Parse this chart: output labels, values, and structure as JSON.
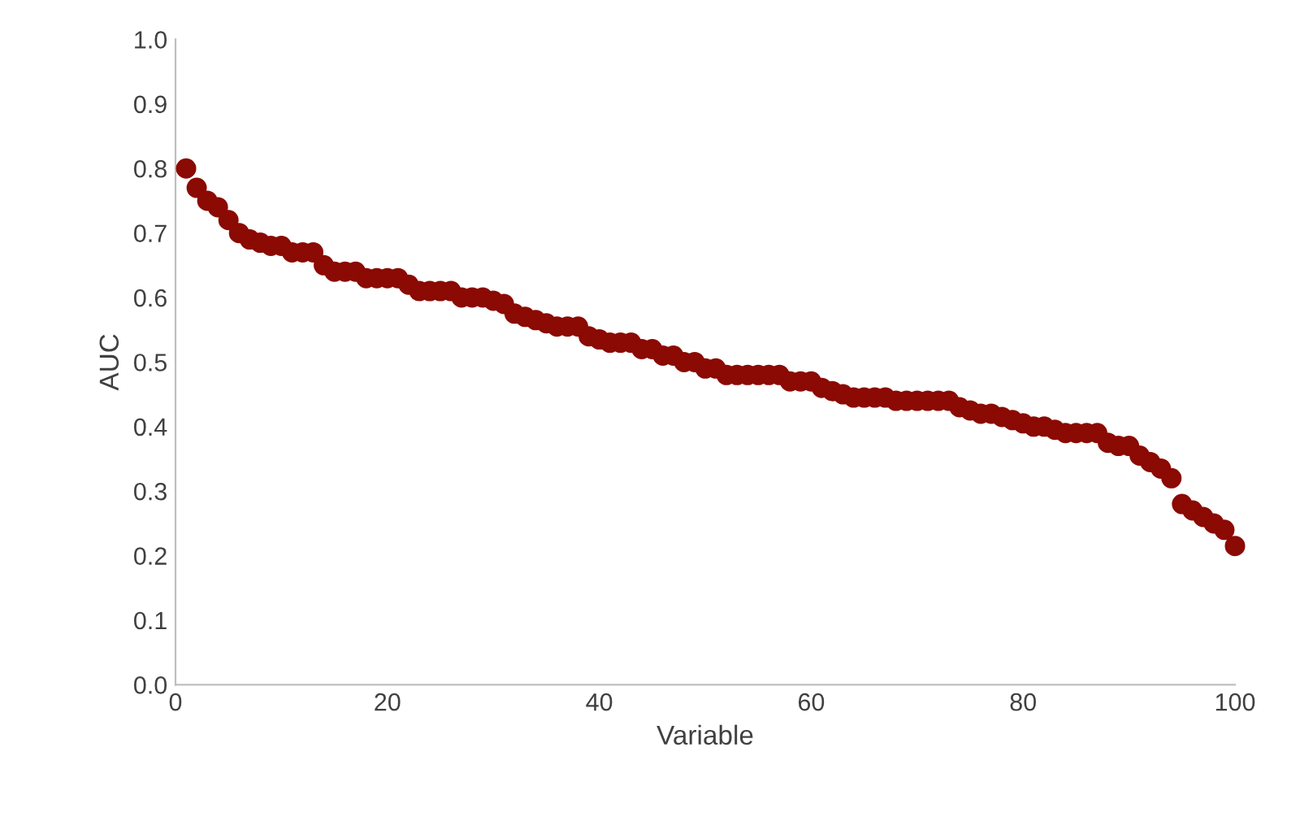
{
  "chart_data": {
    "type": "scatter",
    "xlabel": "Variable",
    "ylabel": "AUC",
    "x": [
      1,
      2,
      3,
      4,
      5,
      6,
      7,
      8,
      9,
      10,
      11,
      12,
      13,
      14,
      15,
      16,
      17,
      18,
      19,
      20,
      21,
      22,
      23,
      24,
      25,
      26,
      27,
      28,
      29,
      30,
      31,
      32,
      33,
      34,
      35,
      36,
      37,
      38,
      39,
      40,
      41,
      42,
      43,
      44,
      45,
      46,
      47,
      48,
      49,
      50,
      51,
      52,
      53,
      54,
      55,
      56,
      57,
      58,
      59,
      60,
      61,
      62,
      63,
      64,
      65,
      66,
      67,
      68,
      69,
      70,
      71,
      72,
      73,
      74,
      75,
      76,
      77,
      78,
      79,
      80,
      81,
      82,
      83,
      84,
      85,
      86,
      87,
      88,
      89,
      90,
      91,
      92,
      93,
      94,
      95,
      96,
      97,
      98,
      99,
      100
    ],
    "series": [
      {
        "color": "#8b0a03",
        "values": [
          0.8,
          0.77,
          0.75,
          0.74,
          0.72,
          0.7,
          0.69,
          0.685,
          0.68,
          0.68,
          0.67,
          0.67,
          0.67,
          0.65,
          0.64,
          0.64,
          0.64,
          0.63,
          0.63,
          0.63,
          0.63,
          0.62,
          0.61,
          0.61,
          0.61,
          0.61,
          0.6,
          0.6,
          0.6,
          0.595,
          0.59,
          0.575,
          0.57,
          0.565,
          0.56,
          0.555,
          0.555,
          0.555,
          0.54,
          0.535,
          0.53,
          0.53,
          0.53,
          0.52,
          0.52,
          0.51,
          0.51,
          0.5,
          0.5,
          0.49,
          0.49,
          0.48,
          0.48,
          0.48,
          0.48,
          0.48,
          0.48,
          0.47,
          0.47,
          0.47,
          0.46,
          0.455,
          0.45,
          0.445,
          0.445,
          0.445,
          0.445,
          0.44,
          0.44,
          0.44,
          0.44,
          0.44,
          0.44,
          0.43,
          0.425,
          0.42,
          0.42,
          0.415,
          0.41,
          0.405,
          0.4,
          0.4,
          0.395,
          0.39,
          0.39,
          0.39,
          0.39,
          0.375,
          0.37,
          0.37,
          0.355,
          0.345,
          0.335,
          0.32,
          0.28,
          0.27,
          0.26,
          0.25,
          0.24,
          0.215
        ]
      }
    ],
    "xlim": [
      0,
      100
    ],
    "xticks": [
      0,
      20,
      40,
      60,
      80,
      100
    ],
    "ylim": [
      0,
      1.0
    ],
    "yticks": [
      {
        "value": 0,
        "label": "0.0"
      },
      {
        "value": 0.1,
        "label": "0.1"
      },
      {
        "value": 0.2,
        "label": "0.2"
      },
      {
        "value": 0.3,
        "label": "0.3"
      },
      {
        "value": 0.4,
        "label": "0.4"
      },
      {
        "value": 0.5,
        "label": "0.5"
      },
      {
        "value": 0.6,
        "label": "0.6"
      },
      {
        "value": 0.7,
        "label": "0.7"
      },
      {
        "value": 0.8,
        "label": "0.8"
      },
      {
        "value": 0.9,
        "label": "0.9"
      },
      {
        "value": 1.0,
        "label": "1.0"
      }
    ],
    "marker": "circle",
    "grid": false,
    "legend": false
  }
}
